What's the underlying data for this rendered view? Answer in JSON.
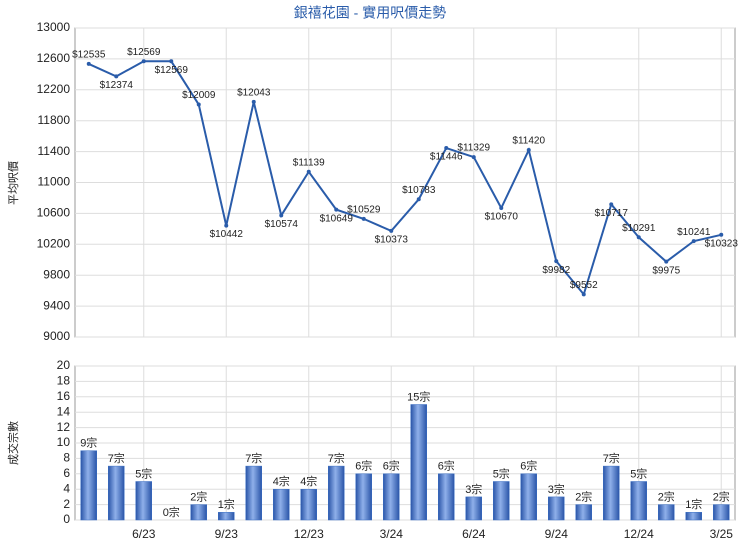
{
  "chart_data": [
    {
      "type": "line",
      "title": "銀禧花園 - 實用呎價走勢",
      "y_label": "平均呎價",
      "color": "#2a5caa",
      "values": [
        12535,
        12374,
        12569,
        12569,
        12009,
        10442,
        12043,
        10574,
        11139,
        10649,
        10529,
        10373,
        10783,
        11446,
        11329,
        10670,
        11420,
        9982,
        9552,
        10717,
        10291,
        9975,
        10241,
        10323
      ],
      "value_labels": [
        "$12535",
        "$12374",
        "$12569",
        "$12569",
        "$12009",
        "$10442",
        "$12043",
        "$10574",
        "$11139",
        "$10649",
        "$10529",
        "$10373",
        "$10783",
        "$11446",
        "$11329",
        "$10670",
        "$11420",
        "$9982",
        "$9552",
        "$10717",
        "$10291",
        "$9975",
        "$10241",
        "$10323"
      ],
      "ylim": [
        9000,
        13000
      ],
      "yticks": [
        9000,
        9400,
        9800,
        10200,
        10600,
        11000,
        11400,
        11800,
        12200,
        12600,
        13000
      ],
      "grid": true
    },
    {
      "type": "bar",
      "y_label": "成交宗數",
      "color": "#3a6fc4",
      "categories": [
        null,
        null,
        "6/23",
        null,
        null,
        "9/23",
        null,
        null,
        "12/23",
        null,
        null,
        "3/24",
        null,
        null,
        "6/24",
        null,
        null,
        "9/24",
        null,
        null,
        "12/24",
        null,
        null,
        "3/25"
      ],
      "values": [
        9,
        7,
        5,
        0,
        2,
        1,
        7,
        4,
        4,
        7,
        6,
        6,
        15,
        6,
        3,
        5,
        6,
        3,
        2,
        7,
        5,
        2,
        1,
        2
      ],
      "value_labels": [
        "9宗",
        "7宗",
        "5宗",
        "0宗",
        "2宗",
        "1宗",
        "7宗",
        "4宗",
        "4宗",
        "7宗",
        "6宗",
        "6宗",
        "15宗",
        "6宗",
        "3宗",
        "5宗",
        "6宗",
        "3宗",
        "2宗",
        "7宗",
        "5宗",
        "2宗",
        "1宗",
        "2宗"
      ],
      "ylim": [
        0,
        20
      ],
      "yticks": [
        0,
        2,
        4,
        6,
        8,
        10,
        12,
        14,
        16,
        18,
        20
      ],
      "grid": true
    }
  ]
}
